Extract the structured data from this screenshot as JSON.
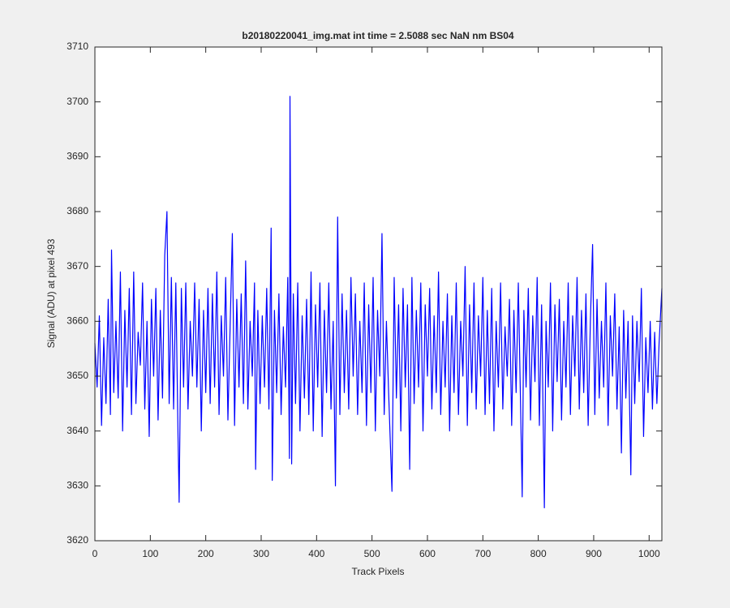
{
  "chart_data": {
    "type": "line",
    "title": "b20180220041_img.mat int time = 2.5088 sec  NaN nm BS04",
    "xlabel": "Track Pixels",
    "ylabel": "Signal (ADU) at pixel 493",
    "color": "#0000ff",
    "xlim": [
      0,
      1023
    ],
    "ylim": [
      3620,
      3710
    ],
    "xticks": [
      0,
      100,
      200,
      300,
      400,
      500,
      600,
      700,
      800,
      900,
      1000
    ],
    "yticks": [
      3620,
      3630,
      3640,
      3650,
      3660,
      3670,
      3680,
      3690,
      3700,
      3710
    ],
    "grid": false,
    "x": [
      0,
      4,
      8,
      12,
      16,
      20,
      24,
      28,
      30,
      34,
      38,
      42,
      46,
      50,
      54,
      58,
      62,
      66,
      70,
      74,
      78,
      82,
      86,
      90,
      94,
      98,
      102,
      106,
      110,
      114,
      118,
      122,
      126,
      130,
      134,
      138,
      142,
      146,
      150,
      152,
      156,
      160,
      164,
      168,
      172,
      176,
      180,
      184,
      188,
      192,
      196,
      200,
      204,
      208,
      212,
      216,
      220,
      224,
      228,
      232,
      236,
      240,
      244,
      248,
      252,
      256,
      260,
      264,
      268,
      272,
      276,
      280,
      284,
      288,
      290,
      294,
      298,
      302,
      306,
      310,
      314,
      318,
      320,
      324,
      328,
      332,
      336,
      340,
      344,
      348,
      351,
      352,
      355,
      358,
      362,
      366,
      370,
      374,
      378,
      382,
      386,
      390,
      394,
      398,
      402,
      406,
      410,
      414,
      418,
      422,
      426,
      430,
      434,
      438,
      442,
      446,
      450,
      454,
      458,
      462,
      466,
      470,
      474,
      478,
      482,
      486,
      490,
      494,
      498,
      502,
      506,
      510,
      514,
      518,
      522,
      526,
      530,
      536,
      540,
      544,
      548,
      552,
      556,
      560,
      564,
      568,
      572,
      576,
      580,
      584,
      588,
      592,
      596,
      600,
      604,
      608,
      612,
      616,
      620,
      624,
      628,
      632,
      636,
      640,
      644,
      648,
      652,
      656,
      660,
      664,
      668,
      672,
      676,
      680,
      684,
      688,
      692,
      696,
      700,
      704,
      708,
      712,
      716,
      720,
      724,
      728,
      732,
      736,
      740,
      744,
      748,
      752,
      756,
      760,
      764,
      768,
      771,
      774,
      778,
      782,
      786,
      790,
      794,
      798,
      802,
      806,
      811,
      814,
      818,
      822,
      826,
      830,
      834,
      838,
      842,
      846,
      850,
      854,
      858,
      862,
      866,
      870,
      874,
      878,
      882,
      886,
      890,
      894,
      898,
      902,
      906,
      910,
      914,
      918,
      922,
      926,
      930,
      934,
      938,
      942,
      946,
      950,
      954,
      958,
      962,
      967,
      970,
      974,
      978,
      982,
      986,
      990,
      994,
      998,
      1002,
      1006,
      1010,
      1014,
      1018,
      1023
    ],
    "values": [
      3656,
      3648,
      3661,
      3641,
      3657,
      3645,
      3664,
      3643,
      3673,
      3647,
      3660,
      3646,
      3669,
      3640,
      3662,
      3648,
      3666,
      3643,
      3669,
      3645,
      3658,
      3652,
      3667,
      3644,
      3660,
      3639,
      3664,
      3650,
      3666,
      3642,
      3662,
      3646,
      3672,
      3680,
      3645,
      3668,
      3644,
      3667,
      3639,
      3627,
      3666,
      3648,
      3667,
      3644,
      3660,
      3650,
      3667,
      3648,
      3664,
      3640,
      3662,
      3647,
      3666,
      3645,
      3665,
      3648,
      3669,
      3643,
      3661,
      3650,
      3668,
      3642,
      3659,
      3676,
      3641,
      3664,
      3648,
      3665,
      3645,
      3671,
      3644,
      3660,
      3650,
      3667,
      3633,
      3662,
      3645,
      3661,
      3648,
      3666,
      3644,
      3677,
      3631,
      3662,
      3647,
      3665,
      3643,
      3659,
      3648,
      3668,
      3635,
      3701,
      3634,
      3665,
      3645,
      3667,
      3640,
      3661,
      3646,
      3664,
      3643,
      3669,
      3640,
      3663,
      3648,
      3667,
      3639,
      3662,
      3647,
      3667,
      3644,
      3660,
      3630,
      3679,
      3643,
      3665,
      3647,
      3662,
      3644,
      3668,
      3650,
      3665,
      3643,
      3660,
      3647,
      3667,
      3641,
      3663,
      3647,
      3668,
      3640,
      3662,
      3650,
      3676,
      3643,
      3660,
      3647,
      3629,
      3668,
      3646,
      3663,
      3640,
      3666,
      3648,
      3663,
      3633,
      3668,
      3645,
      3662,
      3648,
      3667,
      3640,
      3663,
      3650,
      3666,
      3644,
      3661,
      3647,
      3669,
      3643,
      3660,
      3648,
      3665,
      3640,
      3661,
      3647,
      3667,
      3643,
      3660,
      3650,
      3670,
      3641,
      3663,
      3647,
      3667,
      3644,
      3661,
      3650,
      3668,
      3643,
      3662,
      3645,
      3666,
      3640,
      3660,
      3648,
      3667,
      3644,
      3659,
      3650,
      3664,
      3641,
      3662,
      3647,
      3667,
      3645,
      3628,
      3662,
      3648,
      3666,
      3642,
      3661,
      3649,
      3668,
      3641,
      3663,
      3626,
      3660,
      3648,
      3667,
      3640,
      3663,
      3649,
      3664,
      3642,
      3660,
      3648,
      3667,
      3643,
      3661,
      3650,
      3668,
      3644,
      3662,
      3647,
      3665,
      3641,
      3660,
      3674,
      3643,
      3664,
      3646,
      3660,
      3648,
      3667,
      3641,
      3661,
      3650,
      3665,
      3644,
      3659,
      3636,
      3662,
      3646,
      3660,
      3632,
      3661,
      3645,
      3660,
      3649,
      3666,
      3639,
      3657,
      3647,
      3660,
      3644,
      3658,
      3645,
      3656,
      3666
    ]
  }
}
